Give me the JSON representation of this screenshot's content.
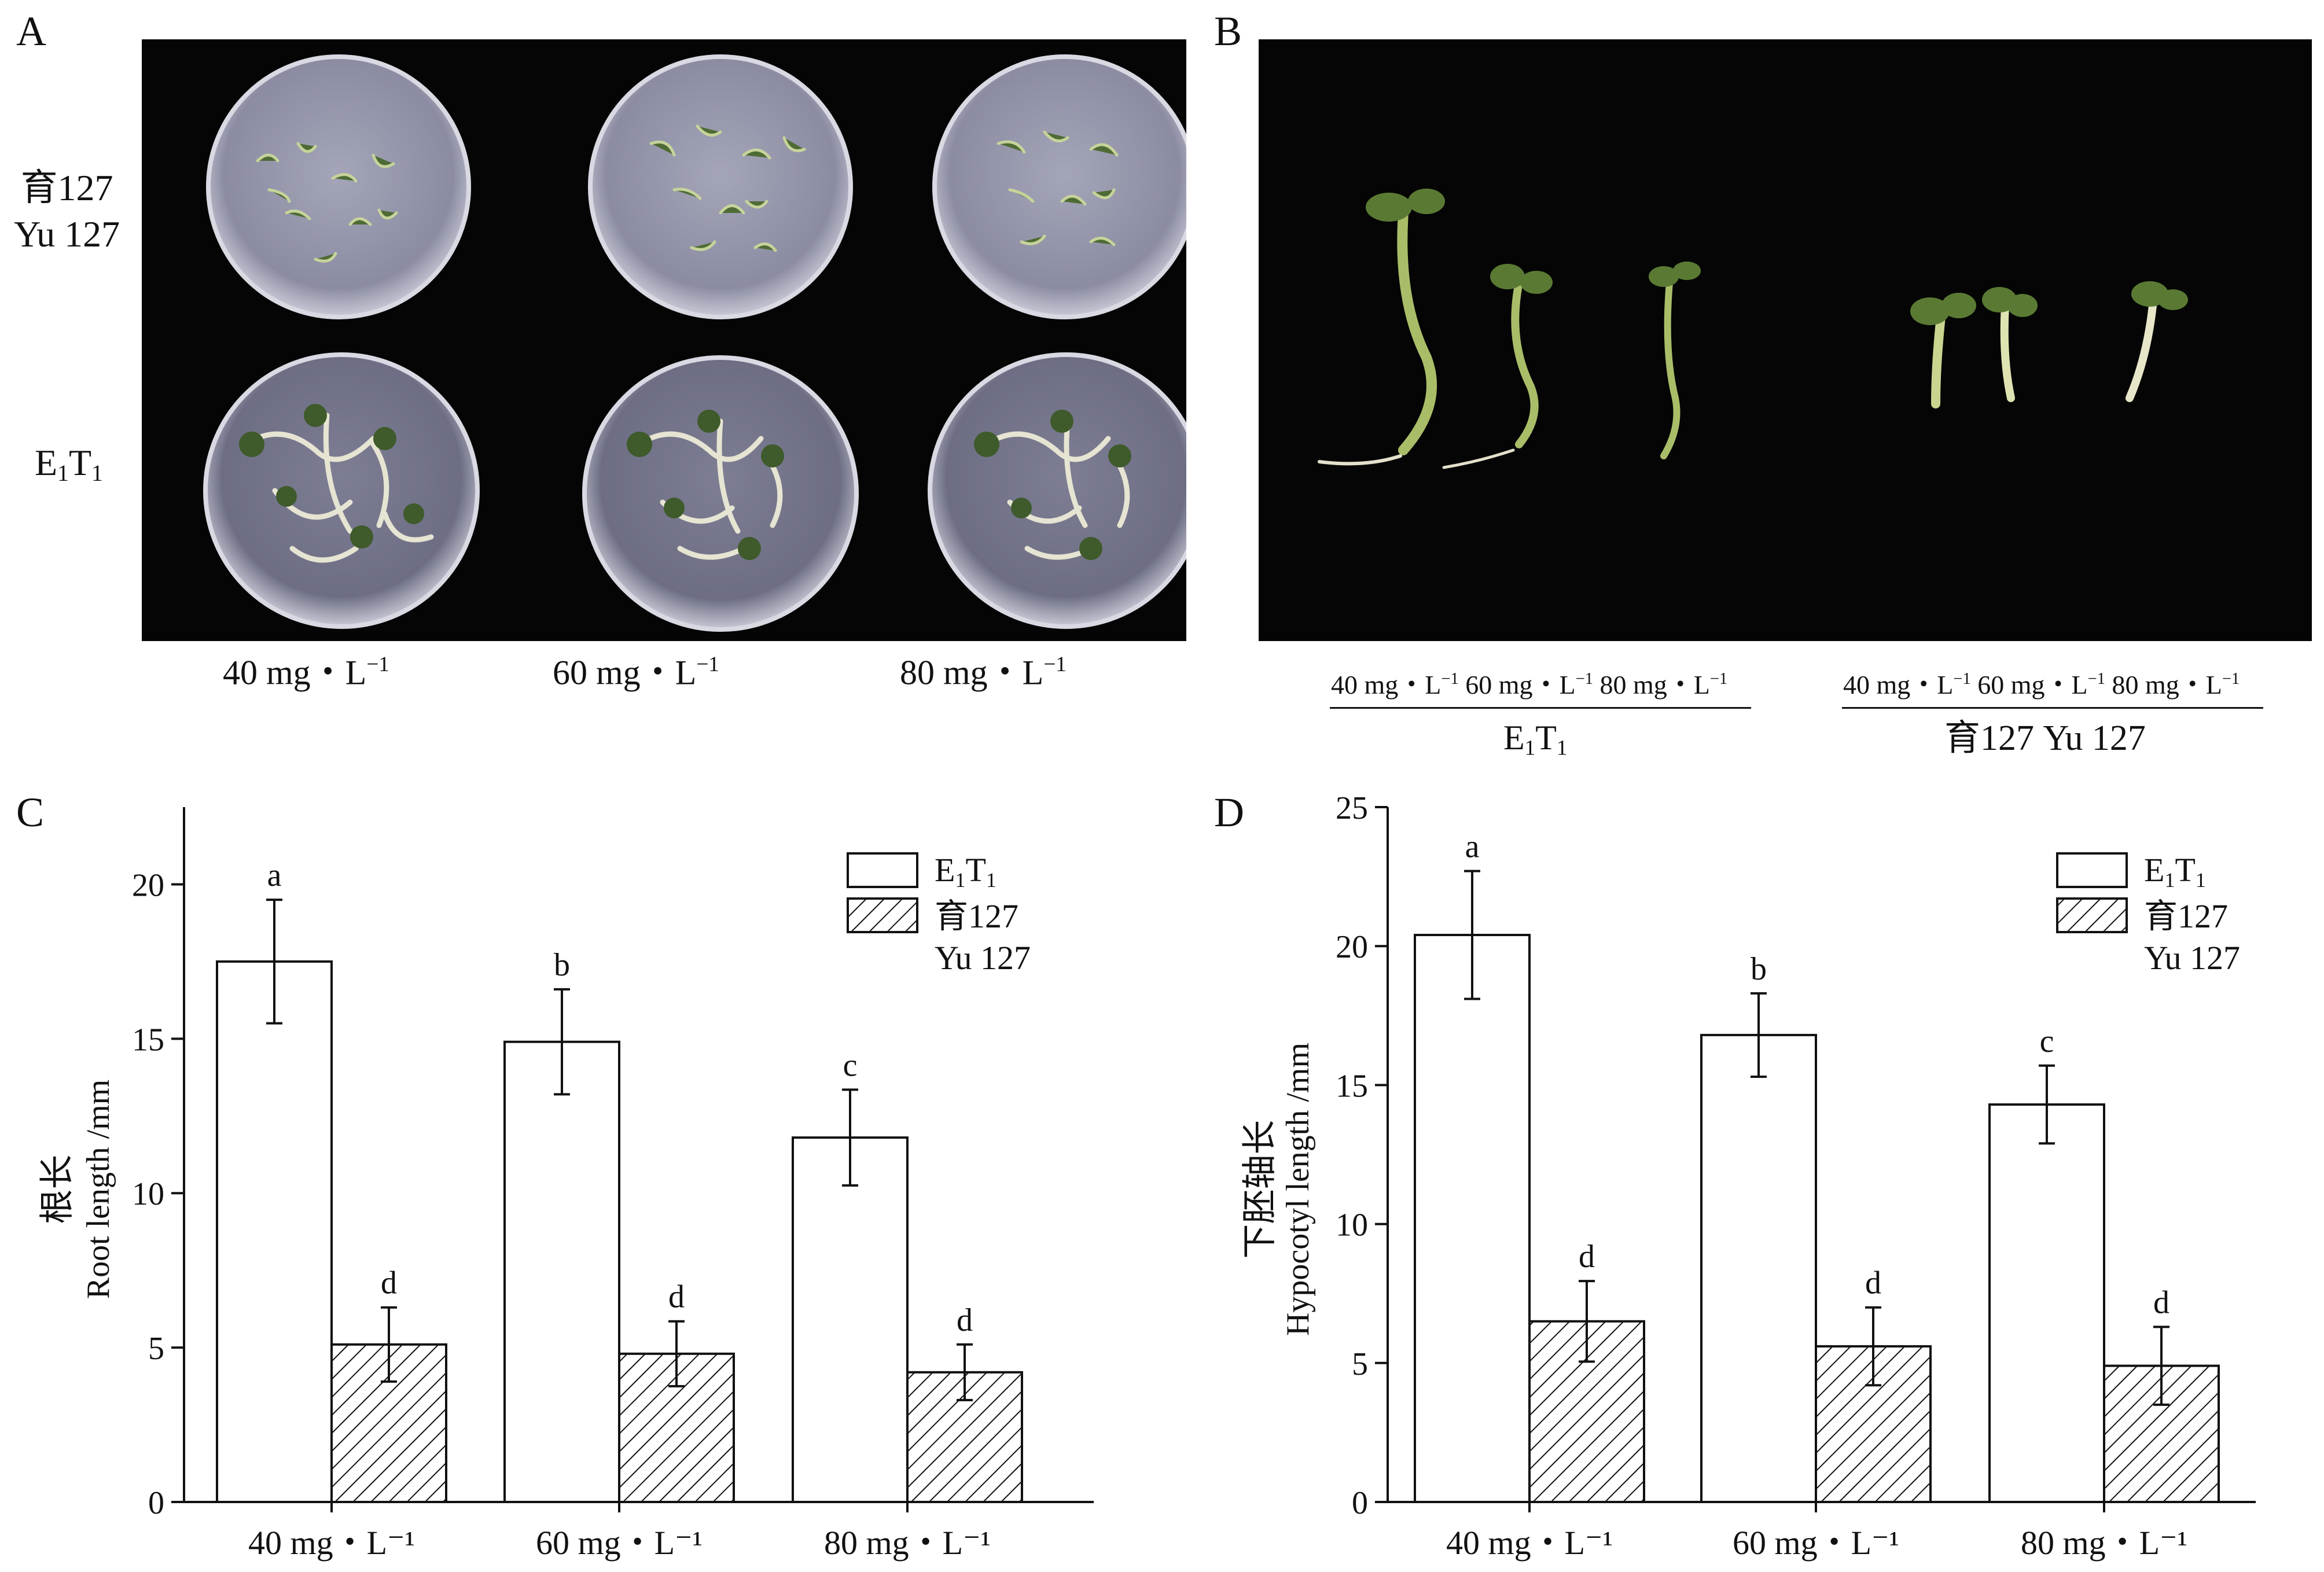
{
  "panels": {
    "A": {
      "letter": "A",
      "rows": [
        "育127 Yu 127",
        "E1T1"
      ],
      "row_yu": [
        "育127",
        "Yu 127"
      ],
      "row_e": {
        "base1": "E",
        "sub1": "1",
        "base2": "T",
        "sub2": "1"
      },
      "concentrations": [
        "40 mg・L",
        "60 mg・L",
        "80 mg・L"
      ],
      "unit_sup": "−1"
    },
    "B": {
      "letter": "B",
      "group1": {
        "concentrations": [
          "40 mg・L",
          "60 mg・L",
          "80 mg・L"
        ],
        "label_base1": "E",
        "label_sub1": "1",
        "label_base2": "T",
        "label_sub2": "1"
      },
      "group2": {
        "concentrations": [
          "40 mg・L",
          "60 mg・L",
          "80 mg・L"
        ],
        "label": "育127 Yu 127"
      },
      "unit_sup": "−1"
    },
    "C": {
      "letter": "C"
    },
    "D": {
      "letter": "D"
    }
  },
  "chart_data": [
    {
      "type": "bar",
      "panel": "C",
      "categories": [
        "40 mg・L⁻¹",
        "60 mg・L⁻¹",
        "80 mg・L⁻¹"
      ],
      "series": [
        {
          "name": "E1T1",
          "values": [
            17.5,
            14.9,
            11.8
          ],
          "errors": [
            2.0,
            1.7,
            1.55
          ],
          "letters": [
            "a",
            "b",
            "c"
          ],
          "fill": "white"
        },
        {
          "name": "育127 Yu 127",
          "values": [
            5.1,
            4.8,
            4.2
          ],
          "errors": [
            1.2,
            1.05,
            0.9
          ],
          "letters": [
            "d",
            "d",
            "d"
          ],
          "fill": "hatch"
        }
      ],
      "ylabel_cn": "根长",
      "ylabel_en": "Root length /mm",
      "ylim": [
        0,
        22.5
      ],
      "yticks": [
        0,
        5,
        10,
        15,
        20
      ],
      "legend": {
        "placement": "top-right",
        "entries": [
          "E1T1",
          "育127",
          "Yu 127"
        ]
      }
    },
    {
      "type": "bar",
      "panel": "D",
      "categories": [
        "40 mg・L⁻¹",
        "60 mg・L⁻¹",
        "80 mg・L⁻¹"
      ],
      "series": [
        {
          "name": "E1T1",
          "values": [
            20.4,
            16.8,
            14.3
          ],
          "errors": [
            2.3,
            1.5,
            1.4
          ],
          "letters": [
            "a",
            "b",
            "c"
          ],
          "fill": "white"
        },
        {
          "name": "育127 Yu 127",
          "values": [
            6.5,
            5.6,
            4.9
          ],
          "errors": [
            1.45,
            1.4,
            1.4
          ],
          "letters": [
            "d",
            "d",
            "d"
          ],
          "fill": "hatch"
        }
      ],
      "ylabel_cn": "下胚轴长",
      "ylabel_en": "Hypocotyl length /mm",
      "ylim": [
        0,
        25
      ],
      "yticks": [
        0,
        5,
        10,
        15,
        20,
        25
      ],
      "legend": {
        "placement": "top-right",
        "entries": [
          "E1T1",
          "育127",
          "Yu 127"
        ]
      }
    }
  ],
  "colors": {
    "photo_bg": "#050505",
    "plate": "#8e8fa5",
    "seedling": "#9fb46a",
    "root": "#e8e6d8",
    "bar_edge": "#111111"
  }
}
